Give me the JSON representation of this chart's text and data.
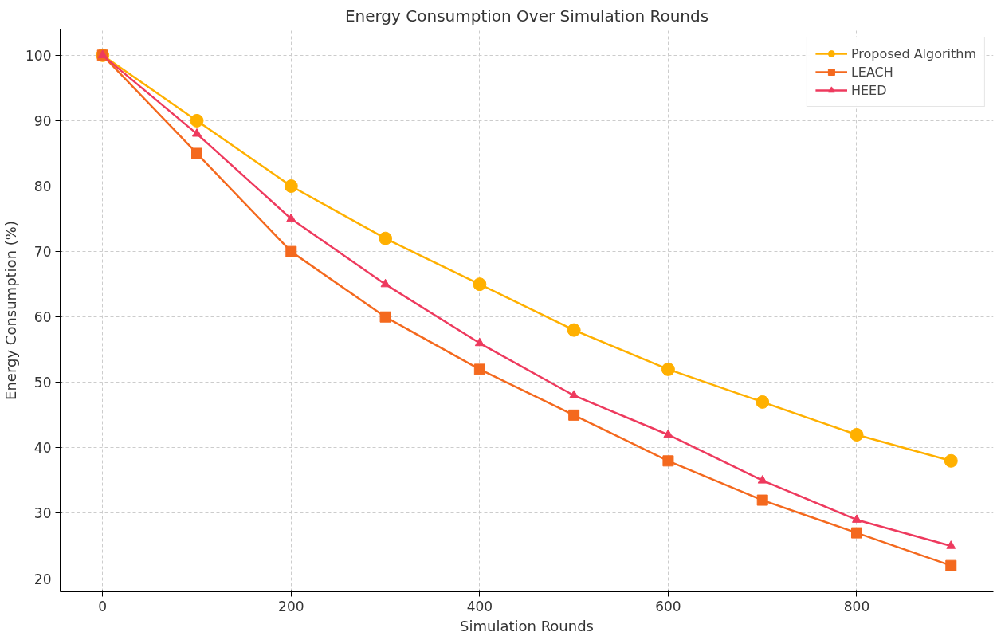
{
  "chart_data": {
    "type": "line",
    "title": "Energy Consumption Over Simulation Rounds",
    "xlabel": "Simulation Rounds",
    "ylabel": "Energy Consumption (%)",
    "x": [
      0,
      100,
      200,
      300,
      400,
      500,
      600,
      700,
      800,
      900
    ],
    "series": [
      {
        "name": "Proposed Algorithm",
        "color": "#ffb000",
        "marker": "circle",
        "values": [
          100,
          90,
          80,
          72,
          65,
          58,
          52,
          47,
          42,
          38
        ]
      },
      {
        "name": "LEACH",
        "color": "#f4691e",
        "marker": "square",
        "values": [
          100,
          85,
          70,
          60,
          52,
          45,
          38,
          32,
          27,
          22
        ]
      },
      {
        "name": "HEED",
        "color": "#ee3a5e",
        "marker": "triangle",
        "values": [
          100,
          88,
          75,
          65,
          56,
          48,
          42,
          35,
          29,
          25
        ]
      }
    ],
    "xlim": [
      -45,
      945
    ],
    "ylim": [
      18,
      104
    ],
    "xticks": [
      0,
      200,
      400,
      600,
      800
    ],
    "yticks": [
      20,
      30,
      40,
      50,
      60,
      70,
      80,
      90,
      100
    ],
    "grid": true,
    "legend": "top right",
    "line_style": "solid"
  }
}
